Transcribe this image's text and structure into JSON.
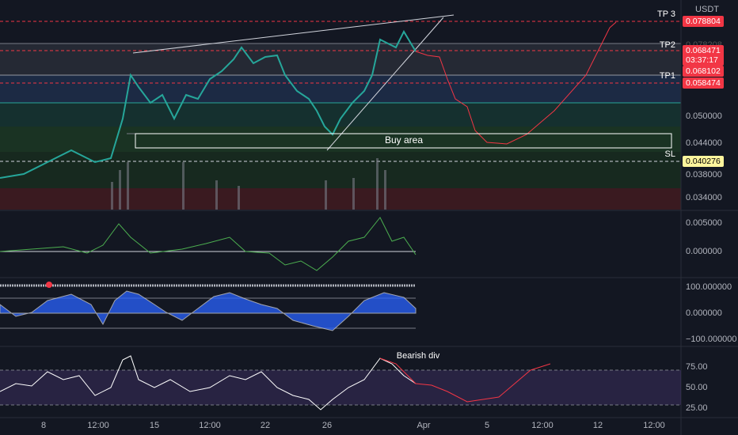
{
  "header": {
    "currency": "USDT"
  },
  "levels": {
    "tp3": "TP 3",
    "tp2": "TP2",
    "tp1": "TP1",
    "sl": "SL"
  },
  "annotations": {
    "buy_area": "Buy area",
    "divergence": "Bearish div"
  },
  "price_tags": {
    "tp3": "0.078804",
    "tp2": "0.078208",
    "last": "0.068471",
    "countdown": "03:37:17",
    "ma": "0.068102",
    "tp1": "0.058474",
    "sl": "0.040276"
  },
  "price_axis": [
    "0.050000",
    "0.044000",
    "0.038000",
    "0.034000"
  ],
  "oscillator_axis": [
    "0.005000",
    "0.000000"
  ],
  "wave_axis": [
    "100.000000",
    "0.000000",
    "−100.000000"
  ],
  "rsi_axis": [
    "75.00",
    "50.00",
    "25.00"
  ],
  "time_axis": [
    "8",
    "12:00",
    "15",
    "12:00",
    "22",
    "26",
    "Apr",
    "5",
    "12:00",
    "12",
    "12:00"
  ]
}
